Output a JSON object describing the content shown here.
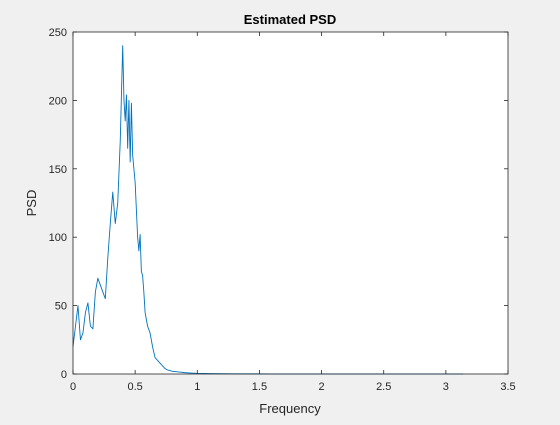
{
  "chart_data": {
    "type": "line",
    "title": "Estimated PSD",
    "xlabel": "Frequency",
    "ylabel": "PSD",
    "xlim": [
      0,
      3.5
    ],
    "ylim": [
      0,
      250
    ],
    "xticks": [
      0,
      0.5,
      1,
      1.5,
      2,
      2.5,
      3,
      3.5
    ],
    "yticks": [
      0,
      50,
      100,
      150,
      200,
      250
    ],
    "xtick_labels": [
      "0",
      "0.5",
      "1",
      "1.5",
      "2",
      "2.5",
      "3",
      "3.5"
    ],
    "ytick_labels": [
      "0",
      "50",
      "100",
      "150",
      "200",
      "250"
    ],
    "grid": false,
    "line_color": "#0072BD",
    "series": [
      {
        "x": [
          0,
          0.02,
          0.04,
          0.06,
          0.08,
          0.1,
          0.12,
          0.14,
          0.16,
          0.18,
          0.2,
          0.22,
          0.24,
          0.26,
          0.28,
          0.3,
          0.32,
          0.34,
          0.36,
          0.38,
          0.4,
          0.41,
          0.42,
          0.43,
          0.44,
          0.45,
          0.46,
          0.47,
          0.48,
          0.49,
          0.5,
          0.51,
          0.52,
          0.53,
          0.54,
          0.55,
          0.56,
          0.57,
          0.58,
          0.59,
          0.6,
          0.62,
          0.64,
          0.66,
          0.68,
          0.7,
          0.72,
          0.74,
          0.76,
          0.78,
          0.8,
          0.85,
          0.9,
          0.95,
          1.0,
          1.05,
          1.1,
          1.2,
          1.3,
          1.4,
          1.6,
          1.8,
          2.0,
          2.5,
          3.0,
          3.14
        ],
        "y": [
          20,
          35,
          50,
          25,
          30,
          45,
          52,
          35,
          33,
          60,
          70,
          65,
          60,
          55,
          85,
          110,
          133,
          110,
          125,
          170,
          240,
          200,
          185,
          204,
          165,
          200,
          155,
          198,
          160,
          150,
          140,
          120,
          100,
          90,
          102,
          75,
          72,
          60,
          45,
          40,
          35,
          30,
          20,
          12,
          10,
          8,
          6,
          4,
          3,
          2.5,
          2,
          1.5,
          1.0,
          0.7,
          0.5,
          0.4,
          0.3,
          0.2,
          0.15,
          0.1,
          0.08,
          0.05,
          0.04,
          0.03,
          0.02,
          0.02
        ]
      }
    ]
  }
}
